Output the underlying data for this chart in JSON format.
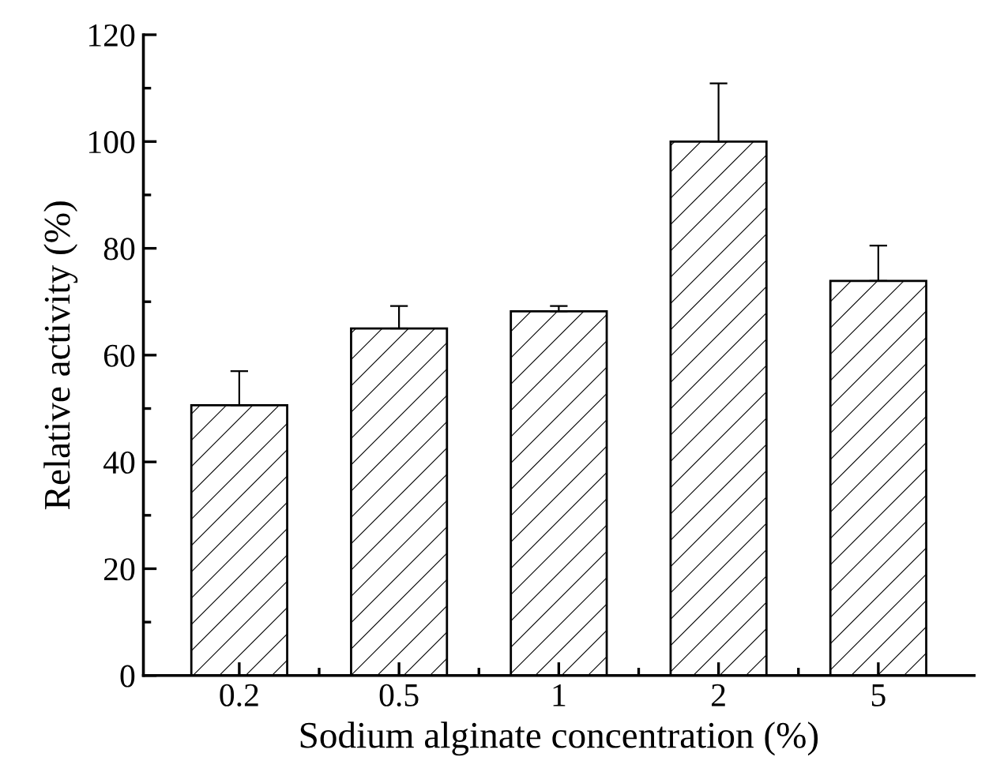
{
  "chart_data": {
    "type": "bar",
    "xlabel": "Sodium alginate concentration (%)",
    "ylabel": "Relative activity (%)",
    "categories": [
      "0.2",
      "0.5",
      "1",
      "2",
      "5"
    ],
    "values": [
      50.6,
      65.0,
      68.2,
      100,
      73.9
    ],
    "errors": [
      [
        50.6,
        57.0
      ],
      [
        65.0,
        69.2
      ],
      [
        68.2,
        69.2
      ],
      [
        100,
        110.9
      ],
      [
        73.9,
        80.5
      ]
    ],
    "color": "#000000",
    "ylim": [
      0,
      120
    ],
    "yticks": [
      0,
      20,
      40,
      60,
      80,
      100,
      120
    ],
    "grid": false,
    "legend": false
  }
}
